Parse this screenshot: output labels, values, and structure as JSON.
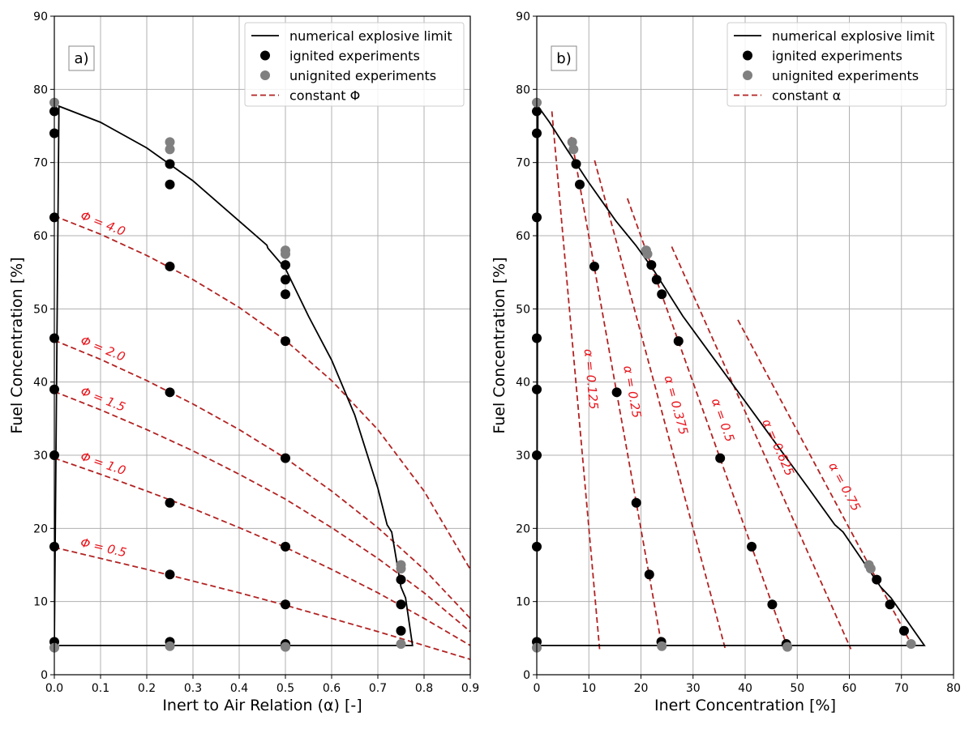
{
  "legend_colors": {
    "limit": "#000000",
    "ignited": "#000000",
    "unignited": "#808080",
    "constant": "#b22222",
    "annotation": "#e8141b"
  },
  "chart_data": [
    {
      "type": "scatter",
      "panel_label": "a)",
      "xlabel": "Inert to Air Relation (α) [-]",
      "ylabel": "Fuel Concentration [%]",
      "xlim": [
        0,
        0.9
      ],
      "ylim": [
        0,
        90
      ],
      "xticks": [
        "0.0",
        "0.1",
        "0.2",
        "0.3",
        "0.4",
        "0.5",
        "0.6",
        "0.7",
        "0.8",
        "0.9"
      ],
      "yticks": [
        "0",
        "10",
        "20",
        "30",
        "40",
        "50",
        "60",
        "70",
        "80",
        "90"
      ],
      "grid": true,
      "legend_position": "top-right",
      "legend": [
        "numerical explosive limit",
        "ignited experiments",
        "unignited experiments",
        "constant Φ"
      ],
      "limit": {
        "x": [
          0,
          0.01,
          0.1,
          0.2,
          0.3,
          0.4,
          0.46,
          0.462,
          0.5,
          0.55,
          0.6,
          0.65,
          0.7,
          0.72,
          0.73,
          0.75,
          0.76,
          0.775,
          0.01
        ],
        "y": [
          4,
          77.7,
          75.5,
          72,
          67.5,
          62,
          58.7,
          58.3,
          55.5,
          49,
          43,
          35.5,
          25.5,
          20.5,
          19.5,
          12,
          10.5,
          4,
          4
        ]
      },
      "ignited": {
        "x": [
          0,
          0,
          0,
          0,
          0,
          0,
          0,
          0,
          0.25,
          0.25,
          0.25,
          0.25,
          0.25,
          0.25,
          0.25,
          0.5,
          0.5,
          0.5,
          0.5,
          0.5,
          0.5,
          0.5,
          0.5,
          0.75,
          0.75,
          0.75
        ],
        "y": [
          77,
          74,
          62.5,
          46,
          39,
          30,
          17.5,
          4.5,
          69.8,
          67,
          55.8,
          38.6,
          23.5,
          13.7,
          4.5,
          56,
          54,
          52,
          45.6,
          29.6,
          17.5,
          9.6,
          4.2,
          13,
          9.6,
          6
        ]
      },
      "unignited": {
        "x": [
          0,
          0,
          0.25,
          0.25,
          0.25,
          0.5,
          0.5,
          0.5,
          0.75,
          0.75,
          0.75
        ],
        "y": [
          78.2,
          3.7,
          71.8,
          72.8,
          3.9,
          58,
          57.5,
          3.8,
          15,
          14.5,
          4.2
        ]
      },
      "constant_lines": [
        {
          "label": "Φ = 4.0",
          "x": [
            0,
            0.1,
            0.2,
            0.3,
            0.4,
            0.5,
            0.6,
            0.7,
            0.8,
            0.9
          ],
          "y": [
            62.7,
            60.2,
            57.3,
            54.0,
            50.2,
            45.7,
            40.2,
            33.5,
            25.1,
            14.4
          ]
        },
        {
          "label": "Φ = 2.0",
          "x": [
            0,
            0.1,
            0.2,
            0.3,
            0.4,
            0.5,
            0.6,
            0.7,
            0.8,
            0.9
          ],
          "y": [
            45.7,
            43.1,
            40.2,
            37.0,
            33.5,
            29.6,
            25.1,
            20.1,
            14.4,
            7.7
          ]
        },
        {
          "label": "Φ = 1.5",
          "x": [
            0,
            0.1,
            0.2,
            0.3,
            0.4,
            0.5,
            0.6,
            0.7,
            0.8,
            0.9
          ],
          "y": [
            38.7,
            36.2,
            33.5,
            30.6,
            27.4,
            24.0,
            20.1,
            15.9,
            11.2,
            5.9
          ]
        },
        {
          "label": "Φ = 1.0",
          "x": [
            0,
            0.1,
            0.2,
            0.3,
            0.4,
            0.5,
            0.6,
            0.7,
            0.8,
            0.9
          ],
          "y": [
            29.6,
            27.4,
            25.1,
            22.7,
            20.1,
            17.4,
            14.4,
            11.2,
            7.7,
            4.0
          ]
        },
        {
          "label": "Φ = 0.5",
          "x": [
            0,
            0.1,
            0.2,
            0.3,
            0.4,
            0.5,
            0.6,
            0.7,
            0.8,
            0.9
          ],
          "y": [
            17.4,
            15.9,
            14.4,
            12.8,
            11.2,
            9.5,
            7.7,
            5.9,
            4.0,
            2.1
          ]
        }
      ]
    },
    {
      "type": "scatter",
      "panel_label": "b)",
      "xlabel": "Inert Concentration [%]",
      "ylabel": "Fuel Concentration [%]",
      "xlim": [
        0,
        80
      ],
      "ylim": [
        0,
        90
      ],
      "xticks": [
        "0",
        "10",
        "20",
        "30",
        "40",
        "50",
        "60",
        "70",
        "80"
      ],
      "yticks": [
        "0",
        "10",
        "20",
        "30",
        "40",
        "50",
        "60",
        "70",
        "80",
        "90"
      ],
      "grid": true,
      "legend_position": "top-right",
      "legend": [
        "numerical explosive limit",
        "ignited experiments",
        "unignited experiments",
        "constant α"
      ],
      "limit": {
        "x": [
          0,
          0.22,
          2.45,
          5.6,
          9.75,
          15.2,
          19.0,
          22.25,
          28.05,
          34.2,
          41.9,
          52.15,
          57.2,
          58.8,
          66,
          68,
          74.4,
          0.22
        ],
        "y": [
          4,
          77.7,
          75.5,
          72,
          67.5,
          62,
          58.7,
          55.5,
          49,
          43,
          35.5,
          25.5,
          20.5,
          19.5,
          12,
          10.5,
          4,
          4
        ]
      },
      "ignited": {
        "x": [
          0,
          0,
          0,
          0,
          0,
          0,
          0,
          0,
          7.55,
          8.25,
          11.05,
          15.35,
          19.1,
          21.6,
          23.9,
          22,
          23,
          24,
          27.2,
          35.2,
          41.25,
          45.2,
          47.9,
          65.25,
          67.8,
          70.5
        ],
        "y": [
          77,
          74,
          62.5,
          46,
          39,
          30,
          17.5,
          4.5,
          69.8,
          67,
          55.8,
          38.6,
          23.5,
          13.7,
          4.5,
          56,
          54,
          52,
          45.6,
          29.6,
          17.5,
          9.6,
          4.2,
          13,
          9.6,
          6
        ]
      },
      "unignited": {
        "x": [
          0,
          0,
          7.05,
          6.8,
          24.0,
          21,
          21.25,
          48.1,
          63.75,
          64.1,
          71.85
        ],
        "y": [
          78.2,
          3.7,
          71.8,
          72.8,
          3.9,
          58,
          57.5,
          3.8,
          15,
          14.5,
          4.2
        ]
      },
      "constant_lines": [
        {
          "label": "α = 0.125",
          "alpha": 0.125,
          "x": [
            2.9,
            12.06
          ],
          "y": [
            77,
            3.5
          ]
        },
        {
          "label": "α = 0.25",
          "alpha": 0.25,
          "x": [
            6.6,
            24.1
          ],
          "y": [
            73.5,
            3.5
          ]
        },
        {
          "label": "α = 0.375",
          "alpha": 0.375,
          "x": [
            11.1,
            36.2
          ],
          "y": [
            70.3,
            3.5
          ]
        },
        {
          "label": "α = 0.5",
          "alpha": 0.5,
          "x": [
            17.4,
            48.25
          ],
          "y": [
            65.1,
            3.5
          ]
        },
        {
          "label": "α = 0.625",
          "alpha": 0.625,
          "x": [
            25.9,
            60.3
          ],
          "y": [
            58.5,
            3.5
          ]
        },
        {
          "label": "α = 0.75",
          "alpha": 0.75,
          "x": [
            38.6,
            72.4
          ],
          "y": [
            48.5,
            3.5
          ]
        }
      ]
    }
  ]
}
